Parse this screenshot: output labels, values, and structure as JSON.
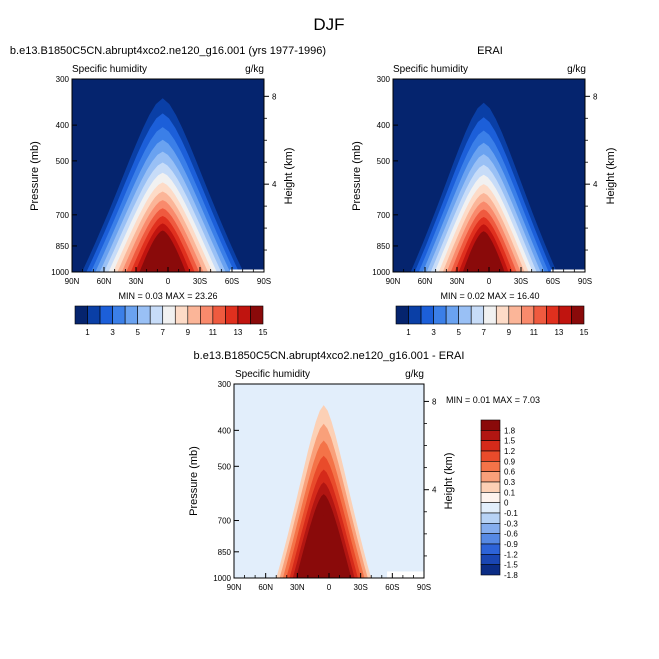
{
  "figure": {
    "title": "DJF"
  },
  "chart_data": [
    {
      "type": "contour",
      "title": "b.e13.B1850C5CN.abrupt4xco2.ne120_g16.001 (yrs 1977-1996)",
      "variable": "Specific humidity",
      "units": "g/kg",
      "ylabel": "Pressure (mb)",
      "ylabel_right": "Height (km)",
      "x_ticks": [
        "90N",
        "60N",
        "30N",
        "0",
        "30S",
        "60S",
        "90S"
      ],
      "y_ticks": [
        300,
        400,
        500,
        700,
        850,
        1000
      ],
      "height_ticks": [
        8,
        4
      ],
      "min_label": "MIN =  0.03  MAX = 23.26",
      "colorbar_labels": [
        "1",
        "3",
        "5",
        "7",
        "9",
        "11",
        "13",
        "15"
      ],
      "peak_latitude": 5,
      "half_width_deg": 42,
      "max_value": 23.26,
      "cap_pressure": 305
    },
    {
      "type": "contour",
      "title": "ERAI",
      "variable": "Specific humidity",
      "units": "g/kg",
      "ylabel": "Pressure (mb)",
      "ylabel_right": "Height (km)",
      "x_ticks": [
        "90N",
        "60N",
        "30N",
        "0",
        "30S",
        "60S",
        "90S"
      ],
      "y_ticks": [
        300,
        400,
        500,
        700,
        850,
        1000
      ],
      "height_ticks": [
        8,
        4
      ],
      "min_label": "MIN =  0.02  MAX = 16.40",
      "colorbar_labels": [
        "1",
        "3",
        "5",
        "7",
        "9",
        "11",
        "13",
        "15"
      ],
      "peak_latitude": 5,
      "half_width_deg": 38,
      "max_value": 16.4,
      "cap_pressure": 315
    },
    {
      "type": "contour",
      "title": "b.e13.B1850C5CN.abrupt4xco2.ne120_g16.001 - ERAI",
      "variable": "Specific humidity",
      "units": "g/kg",
      "ylabel": "Pressure (mb)",
      "ylabel_right": "Height (km)",
      "x_ticks": [
        "90N",
        "60N",
        "30N",
        "0",
        "30S",
        "60S",
        "90S"
      ],
      "y_ticks": [
        300,
        400,
        500,
        700,
        850,
        1000
      ],
      "height_ticks": [
        8,
        4
      ],
      "min_label": "MIN =  0.01  MAX =  7.03",
      "colorbar_labels": [
        "1.8",
        "1.5",
        "1.2",
        "0.9",
        "0.6",
        "0.3",
        "0.1",
        "0",
        "-0.1",
        "-0.3",
        "-0.6",
        "-0.9",
        "-1.2",
        "-1.5",
        "-1.8"
      ],
      "peak_latitude": 5,
      "half_width_deg": 30,
      "max_value": 7.03,
      "cap_pressure": 300
    }
  ],
  "colorbar_seq": [
    "#05246e",
    "#0a3fa6",
    "#1c5fd9",
    "#3b7fe8",
    "#6aa2f0",
    "#99c0f5",
    "#c7dcf8",
    "#f1f1f1",
    "#fddbc7",
    "#fbb598",
    "#f98a6c",
    "#ef5a3f",
    "#e0301e",
    "#c0140f",
    "#8a0a0a"
  ],
  "colorbar_div": [
    "#8a0a0a",
    "#b21612",
    "#d52a1a",
    "#e94b2b",
    "#f47348",
    "#f9a07a",
    "#fcd0b5",
    "#fdf3ee",
    "#e2eefb",
    "#b7d2f5",
    "#85adee",
    "#5689e4",
    "#2d63d8",
    "#1a46b3",
    "#0b2c85"
  ]
}
